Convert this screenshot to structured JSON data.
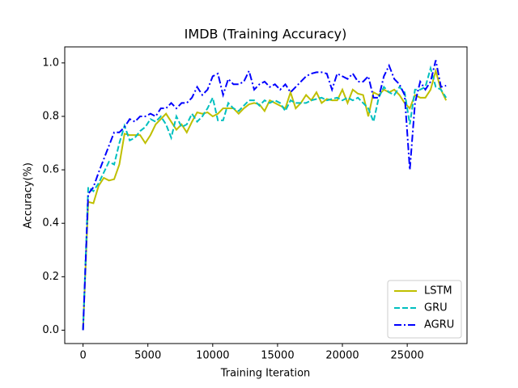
{
  "chart_data": {
    "type": "line",
    "title": "IMDB (Training Accuracy)",
    "xlabel": "Training Iteration",
    "ylabel": "Accuracy(%)",
    "x": [
      0,
      400,
      800,
      1200,
      1600,
      2000,
      2400,
      2800,
      3200,
      3600,
      4000,
      4400,
      4800,
      5200,
      5600,
      6000,
      6400,
      6800,
      7200,
      7600,
      8000,
      8400,
      8800,
      9200,
      9600,
      10000,
      10400,
      10800,
      11200,
      11600,
      12000,
      12400,
      12800,
      13200,
      13600,
      14000,
      14400,
      14800,
      15200,
      15600,
      16000,
      16400,
      16800,
      17200,
      17600,
      18000,
      18400,
      18800,
      19200,
      19600,
      20000,
      20400,
      20800,
      21200,
      21600,
      22000,
      22400,
      22800,
      23200,
      23600,
      24000,
      24400,
      24800,
      25200,
      25600,
      26000,
      26400,
      26800,
      27200,
      27600,
      28000
    ],
    "series": [
      {
        "name": "LSTM",
        "color": "#bfbf00",
        "dash": "solid",
        "values": [
          0.0,
          0.48,
          0.475,
          0.54,
          0.57,
          0.56,
          0.565,
          0.62,
          0.735,
          0.73,
          0.73,
          0.73,
          0.7,
          0.73,
          0.77,
          0.79,
          0.81,
          0.78,
          0.75,
          0.77,
          0.74,
          0.78,
          0.815,
          0.81,
          0.815,
          0.8,
          0.81,
          0.83,
          0.83,
          0.83,
          0.81,
          0.83,
          0.845,
          0.85,
          0.845,
          0.82,
          0.86,
          0.85,
          0.84,
          0.83,
          0.89,
          0.83,
          0.85,
          0.88,
          0.86,
          0.89,
          0.85,
          0.865,
          0.86,
          0.86,
          0.9,
          0.85,
          0.9,
          0.885,
          0.88,
          0.8,
          0.89,
          0.88,
          0.9,
          0.89,
          0.9,
          0.88,
          0.85,
          0.83,
          0.88,
          0.87,
          0.87,
          0.9,
          0.97,
          0.9,
          0.86
        ]
      },
      {
        "name": "GRU",
        "color": "#00bfbf",
        "dash": "dashed",
        "values": [
          0.0,
          0.535,
          0.52,
          0.55,
          0.59,
          0.63,
          0.62,
          0.7,
          0.765,
          0.71,
          0.72,
          0.745,
          0.76,
          0.79,
          0.78,
          0.8,
          0.77,
          0.72,
          0.8,
          0.76,
          0.77,
          0.81,
          0.78,
          0.8,
          0.83,
          0.87,
          0.785,
          0.785,
          0.85,
          0.83,
          0.82,
          0.84,
          0.86,
          0.86,
          0.84,
          0.86,
          0.85,
          0.86,
          0.85,
          0.82,
          0.86,
          0.85,
          0.85,
          0.85,
          0.86,
          0.865,
          0.87,
          0.86,
          0.865,
          0.87,
          0.86,
          0.87,
          0.86,
          0.87,
          0.85,
          0.83,
          0.78,
          0.87,
          0.91,
          0.89,
          0.88,
          0.91,
          0.89,
          0.77,
          0.9,
          0.9,
          0.91,
          0.98,
          0.91,
          0.9,
          0.87
        ]
      },
      {
        "name": "AGRU",
        "color": "#0000ff",
        "dash": "dashdot",
        "values": [
          0.0,
          0.51,
          0.535,
          0.59,
          0.64,
          0.69,
          0.74,
          0.74,
          0.76,
          0.79,
          0.78,
          0.8,
          0.8,
          0.81,
          0.8,
          0.83,
          0.83,
          0.85,
          0.83,
          0.85,
          0.85,
          0.87,
          0.91,
          0.88,
          0.9,
          0.95,
          0.96,
          0.88,
          0.94,
          0.92,
          0.92,
          0.93,
          0.97,
          0.9,
          0.92,
          0.93,
          0.91,
          0.92,
          0.9,
          0.92,
          0.89,
          0.91,
          0.93,
          0.95,
          0.96,
          0.965,
          0.965,
          0.96,
          0.9,
          0.96,
          0.95,
          0.94,
          0.96,
          0.93,
          0.93,
          0.95,
          0.87,
          0.87,
          0.95,
          0.99,
          0.94,
          0.92,
          0.88,
          0.6,
          0.85,
          0.93,
          0.9,
          0.93,
          1.01,
          0.91,
          0.915
        ]
      }
    ],
    "xlim": [
      -1410,
      29610
    ],
    "ylim": [
      -0.05,
      1.06
    ],
    "xticks": [
      0,
      5000,
      10000,
      15000,
      20000,
      25000
    ],
    "yticks": [
      {
        "value": 0,
        "label": "0.0"
      },
      {
        "value": 0.2,
        "label": "0.2"
      },
      {
        "value": 0.4,
        "label": "0.4"
      },
      {
        "value": 0.6,
        "label": "0.6"
      },
      {
        "value": 0.8,
        "label": "0.8"
      },
      {
        "value": 1,
        "label": "1.0"
      }
    ],
    "legend": "lower right"
  }
}
